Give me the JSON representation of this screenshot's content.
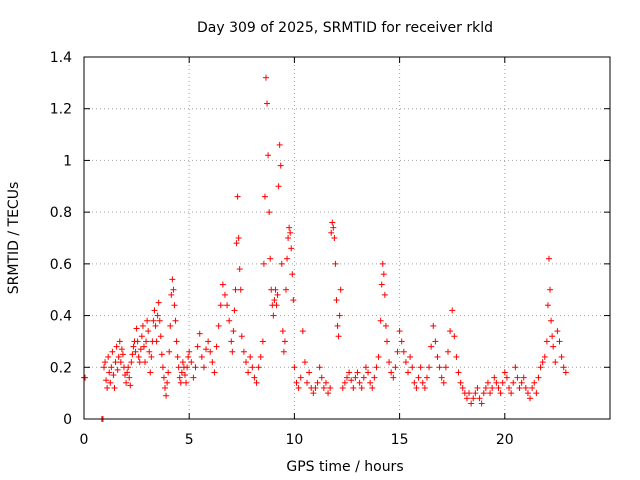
{
  "chart_data": {
    "type": "scatter",
    "title": "Day 309 of 2025, SRMTID for receiver rkld",
    "xlabel": "GPS time / hours",
    "ylabel": "SRMTID / TECUs",
    "xlim": [
      0,
      25
    ],
    "ylim": [
      0,
      1.4
    ],
    "xticks": [
      0,
      5,
      10,
      15,
      20
    ],
    "xtick_labels": [
      "0",
      "5",
      "10",
      "15",
      "20"
    ],
    "yticks": [
      0,
      0.2,
      0.4,
      0.6,
      0.8,
      1,
      1.2,
      1.4
    ],
    "ytick_labels": [
      "0",
      "0.2",
      "0.4",
      "0.6",
      "0.8",
      "1",
      "1.2",
      "1.4"
    ],
    "grid": true,
    "marker": "plus",
    "color": "#ff0000",
    "series": [
      {
        "name": "SRMTID",
        "x": [
          0.0,
          0.05,
          0.85,
          0.9,
          0.95,
          1.0,
          1.05,
          1.1,
          1.15,
          1.2,
          1.25,
          1.3,
          1.35,
          1.4,
          1.45,
          1.5,
          1.55,
          1.6,
          1.65,
          1.7,
          1.75,
          1.8,
          1.85,
          1.9,
          1.95,
          2.0,
          2.05,
          2.1,
          2.15,
          2.2,
          2.25,
          2.3,
          2.35,
          2.4,
          2.45,
          2.5,
          2.55,
          2.6,
          2.65,
          2.7,
          2.75,
          2.8,
          2.85,
          2.9,
          2.95,
          3.0,
          3.05,
          3.1,
          3.15,
          3.2,
          3.25,
          3.3,
          3.35,
          3.4,
          3.45,
          3.5,
          3.55,
          3.6,
          3.65,
          3.7,
          3.75,
          3.8,
          3.85,
          3.9,
          3.95,
          4.0,
          4.05,
          4.1,
          4.15,
          4.2,
          4.25,
          4.3,
          4.35,
          4.4,
          4.45,
          4.5,
          4.55,
          4.6,
          4.65,
          4.7,
          4.75,
          4.8,
          4.85,
          4.9,
          4.95,
          5.0,
          5.1,
          5.2,
          5.3,
          5.4,
          5.5,
          5.6,
          5.7,
          5.8,
          5.9,
          6.0,
          6.1,
          6.2,
          6.3,
          6.4,
          6.5,
          6.6,
          6.7,
          6.8,
          6.9,
          7.0,
          7.05,
          7.1,
          7.15,
          7.2,
          7.25,
          7.3,
          7.35,
          7.4,
          7.45,
          7.5,
          7.6,
          7.7,
          7.8,
          7.9,
          8.0,
          8.1,
          8.2,
          8.3,
          8.4,
          8.5,
          8.55,
          8.6,
          8.65,
          8.7,
          8.75,
          8.8,
          8.85,
          8.9,
          8.95,
          9.0,
          9.05,
          9.1,
          9.15,
          9.2,
          9.25,
          9.3,
          9.35,
          9.4,
          9.45,
          9.5,
          9.55,
          9.6,
          9.65,
          9.7,
          9.75,
          9.8,
          9.85,
          9.9,
          9.95,
          10.0,
          10.1,
          10.2,
          10.3,
          10.4,
          10.5,
          10.6,
          10.7,
          10.8,
          10.9,
          11.0,
          11.1,
          11.2,
          11.3,
          11.4,
          11.5,
          11.6,
          11.7,
          11.75,
          11.8,
          11.85,
          11.9,
          11.95,
          12.0,
          12.05,
          12.1,
          12.15,
          12.2,
          12.3,
          12.4,
          12.5,
          12.6,
          12.7,
          12.8,
          12.9,
          13.0,
          13.1,
          13.2,
          13.3,
          13.4,
          13.5,
          13.6,
          13.7,
          13.8,
          13.9,
          14.0,
          14.1,
          14.15,
          14.2,
          14.25,
          14.3,
          14.35,
          14.4,
          14.5,
          14.6,
          14.7,
          14.8,
          14.9,
          15.0,
          15.1,
          15.2,
          15.3,
          15.4,
          15.5,
          15.6,
          15.7,
          15.8,
          15.9,
          16.0,
          16.1,
          16.2,
          16.3,
          16.4,
          16.5,
          16.6,
          16.7,
          16.8,
          16.9,
          17.0,
          17.1,
          17.2,
          17.3,
          17.4,
          17.5,
          17.6,
          17.7,
          17.8,
          17.9,
          18.0,
          18.1,
          18.2,
          18.3,
          18.4,
          18.5,
          18.6,
          18.7,
          18.8,
          18.9,
          19.0,
          19.1,
          19.2,
          19.3,
          19.4,
          19.5,
          19.6,
          19.7,
          19.8,
          19.9,
          20.0,
          20.1,
          20.2,
          20.3,
          20.4,
          20.5,
          20.6,
          20.7,
          20.8,
          20.9,
          21.0,
          21.1,
          21.2,
          21.3,
          21.4,
          21.5,
          21.6,
          21.7,
          21.8,
          21.9,
          22.0,
          22.05,
          22.1,
          22.15,
          22.2,
          22.25,
          22.3,
          22.4,
          22.5,
          22.6,
          22.7,
          22.8,
          22.9
        ],
        "y": [
          0.16,
          0.16,
          0.0,
          0.0,
          0.2,
          0.22,
          0.15,
          0.12,
          0.24,
          0.18,
          0.14,
          0.2,
          0.26,
          0.17,
          0.12,
          0.22,
          0.28,
          0.19,
          0.24,
          0.3,
          0.22,
          0.27,
          0.25,
          0.2,
          0.17,
          0.14,
          0.18,
          0.2,
          0.16,
          0.13,
          0.22,
          0.25,
          0.28,
          0.3,
          0.26,
          0.35,
          0.3,
          0.24,
          0.22,
          0.27,
          0.32,
          0.36,
          0.28,
          0.22,
          0.3,
          0.38,
          0.34,
          0.26,
          0.18,
          0.24,
          0.3,
          0.38,
          0.42,
          0.36,
          0.3,
          0.4,
          0.45,
          0.38,
          0.32,
          0.25,
          0.2,
          0.16,
          0.12,
          0.09,
          0.14,
          0.18,
          0.26,
          0.36,
          0.48,
          0.54,
          0.5,
          0.44,
          0.38,
          0.3,
          0.24,
          0.2,
          0.16,
          0.14,
          0.18,
          0.22,
          0.2,
          0.17,
          0.14,
          0.2,
          0.24,
          0.26,
          0.22,
          0.16,
          0.2,
          0.28,
          0.33,
          0.24,
          0.2,
          0.27,
          0.3,
          0.26,
          0.22,
          0.18,
          0.28,
          0.36,
          0.44,
          0.52,
          0.48,
          0.44,
          0.38,
          0.3,
          0.26,
          0.34,
          0.42,
          0.5,
          0.68,
          0.86,
          0.7,
          0.58,
          0.5,
          0.32,
          0.26,
          0.22,
          0.18,
          0.24,
          0.2,
          0.16,
          0.14,
          0.2,
          0.24,
          0.3,
          0.6,
          0.86,
          1.32,
          1.22,
          1.02,
          0.8,
          0.62,
          0.5,
          0.44,
          0.4,
          0.46,
          0.5,
          0.44,
          0.48,
          0.9,
          1.06,
          0.98,
          0.6,
          0.34,
          0.26,
          0.3,
          0.5,
          0.62,
          0.7,
          0.74,
          0.72,
          0.66,
          0.56,
          0.46,
          0.2,
          0.14,
          0.12,
          0.16,
          0.34,
          0.22,
          0.14,
          0.18,
          0.12,
          0.1,
          0.12,
          0.14,
          0.2,
          0.16,
          0.12,
          0.14,
          0.1,
          0.12,
          0.72,
          0.76,
          0.74,
          0.7,
          0.6,
          0.46,
          0.36,
          0.32,
          0.4,
          0.5,
          0.12,
          0.14,
          0.16,
          0.18,
          0.15,
          0.12,
          0.16,
          0.18,
          0.14,
          0.12,
          0.16,
          0.2,
          0.18,
          0.14,
          0.12,
          0.16,
          0.2,
          0.24,
          0.38,
          0.52,
          0.6,
          0.56,
          0.48,
          0.36,
          0.3,
          0.22,
          0.18,
          0.16,
          0.2,
          0.26,
          0.34,
          0.3,
          0.26,
          0.22,
          0.18,
          0.24,
          0.2,
          0.14,
          0.12,
          0.16,
          0.2,
          0.14,
          0.12,
          0.16,
          0.2,
          0.28,
          0.36,
          0.3,
          0.24,
          0.2,
          0.16,
          0.14,
          0.2,
          0.26,
          0.34,
          0.42,
          0.32,
          0.24,
          0.18,
          0.14,
          0.12,
          0.1,
          0.08,
          0.1,
          0.06,
          0.08,
          0.1,
          0.12,
          0.08,
          0.06,
          0.1,
          0.12,
          0.14,
          0.1,
          0.12,
          0.16,
          0.14,
          0.12,
          0.1,
          0.14,
          0.18,
          0.16,
          0.12,
          0.1,
          0.14,
          0.2,
          0.16,
          0.12,
          0.14,
          0.16,
          0.12,
          0.1,
          0.08,
          0.12,
          0.14,
          0.1,
          0.16,
          0.2,
          0.22,
          0.24,
          0.3,
          0.44,
          0.62,
          0.5,
          0.38,
          0.32,
          0.28,
          0.22,
          0.34,
          0.3,
          0.24,
          0.2,
          0.18
        ]
      }
    ]
  }
}
